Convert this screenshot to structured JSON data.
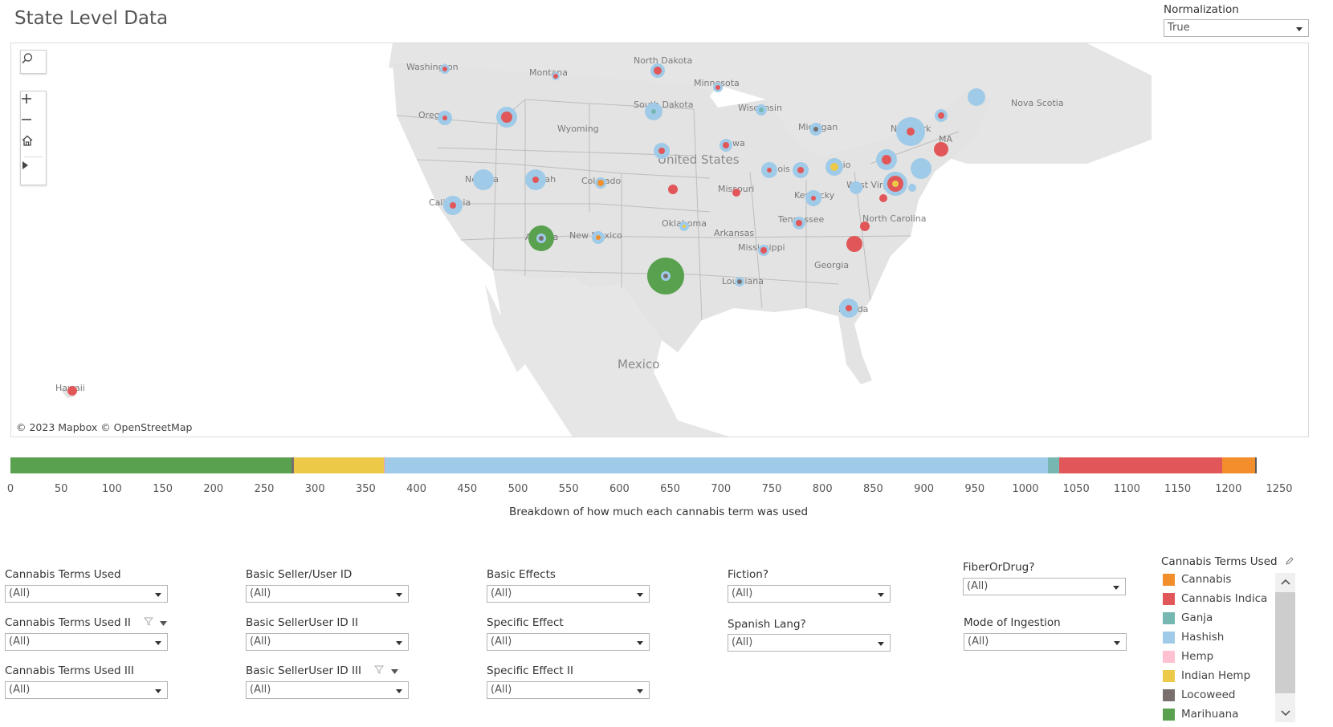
{
  "title": "State Level Data",
  "normalization": {
    "label": "Normalization",
    "value": "True"
  },
  "map": {
    "attribution": "© 2023 Mapbox  © OpenStreetMap",
    "labels": {
      "washington": "Washington",
      "montana": "Montana",
      "north_dakota": "North Dakota",
      "minnesota": "Minnesota",
      "oregon": "Oregon",
      "wyoming": "Wyoming",
      "south_dakota": "South Dakota",
      "wisconsin": "Wisconsin",
      "michigan": "Michigan",
      "new_york": "New York",
      "ma": "MA",
      "nova_scotia": "Nova Scotia",
      "iowa": "Iowa",
      "nevada": "Nevada",
      "utah": "Utah",
      "colorado": "Colorado",
      "united_states": "United States",
      "illinois": "Illinois",
      "ohio": "Ohio",
      "west_virginia": "West Virginia",
      "california": "California",
      "missouri": "Missouri",
      "kentucky": "Kentucky",
      "north_carolina": "North Carolina",
      "tennessee": "Tennessee",
      "oklahoma": "Oklahoma",
      "new_mexico": "New Mexico",
      "arizona": "Arizona",
      "arkansas": "Arkansas",
      "mississippi": "Mississippi",
      "georgia": "Georgia",
      "louisiana": "Louisiana",
      "florida": "Florida",
      "mexico": "Mexico",
      "hawaii": "Hawaii"
    }
  },
  "bar_chart": {
    "caption": "Breakdown of how much each cannabis term was used",
    "ticks": [
      "0",
      "50",
      "100",
      "150",
      "200",
      "250",
      "300",
      "350",
      "400",
      "450",
      "500",
      "550",
      "600",
      "650",
      "700",
      "750",
      "800",
      "850",
      "900",
      "950",
      "1000",
      "1050",
      "1100",
      "1150",
      "1200",
      "1250"
    ],
    "axis_max": 1250,
    "segments": [
      {
        "name": "Marihuana",
        "value": 277,
        "color": "#59a14f"
      },
      {
        "name": "Locoweed",
        "value": 2,
        "color": "#79706e"
      },
      {
        "name": "Indian Hemp",
        "value": 89,
        "color": "#edc948"
      },
      {
        "name": "Hemp",
        "value": 1,
        "color": "#ff9da7"
      },
      {
        "name": "Hashish",
        "value": 653,
        "color": "#a0cbe8"
      },
      {
        "name": "Ganja",
        "value": 11,
        "color": "#76b7b2"
      },
      {
        "name": "Cannabis Indica",
        "value": 161,
        "color": "#e15759"
      },
      {
        "name": "Cannabis",
        "value": 32,
        "color": "#f28e2b"
      },
      {
        "name": "Other",
        "value": 2,
        "color": "#5a5a5a"
      }
    ]
  },
  "filters": {
    "cannabis_terms": {
      "label": "Cannabis Terms Used",
      "value": "(All)"
    },
    "cannabis_terms_2": {
      "label": "Cannabis Terms Used II",
      "value": "(All)"
    },
    "cannabis_terms_3": {
      "label": "Cannabis Terms Used III",
      "value": "(All)"
    },
    "seller_id": {
      "label": "Basic Seller/User ID",
      "value": "(All)"
    },
    "seller_id_2": {
      "label": "Basic SellerUser ID II",
      "value": "(All)"
    },
    "seller_id_3": {
      "label": "Basic SellerUser ID III",
      "value": "(All)"
    },
    "basic_effects": {
      "label": "Basic Effects",
      "value": "(All)"
    },
    "specific_effect": {
      "label": "Specific Effect",
      "value": "(All)"
    },
    "specific_effect_2": {
      "label": "Specific Effect II",
      "value": "(All)"
    },
    "fiction": {
      "label": "Fiction?",
      "value": "(All)"
    },
    "spanish": {
      "label": "Spanish Lang?",
      "value": "(All)"
    },
    "fiber_or_drug": {
      "label": "FiberOrDrug?",
      "value": "(All)"
    },
    "ingestion": {
      "label": "Mode of Ingestion",
      "value": "(All)"
    }
  },
  "legend": {
    "title": "Cannabis Terms Used",
    "items": [
      {
        "label": "Cannabis",
        "color": "#f28e2b"
      },
      {
        "label": "Cannabis Indica",
        "color": "#e15759"
      },
      {
        "label": "Ganja",
        "color": "#76b7b2"
      },
      {
        "label": "Hashish",
        "color": "#a0cbe8"
      },
      {
        "label": "Hemp",
        "color": "#ffc0d0"
      },
      {
        "label": "Indian Hemp",
        "color": "#edc948"
      },
      {
        "label": "Locoweed",
        "color": "#79706e"
      },
      {
        "label": "Marihuana",
        "color": "#59a14f"
      }
    ]
  }
}
